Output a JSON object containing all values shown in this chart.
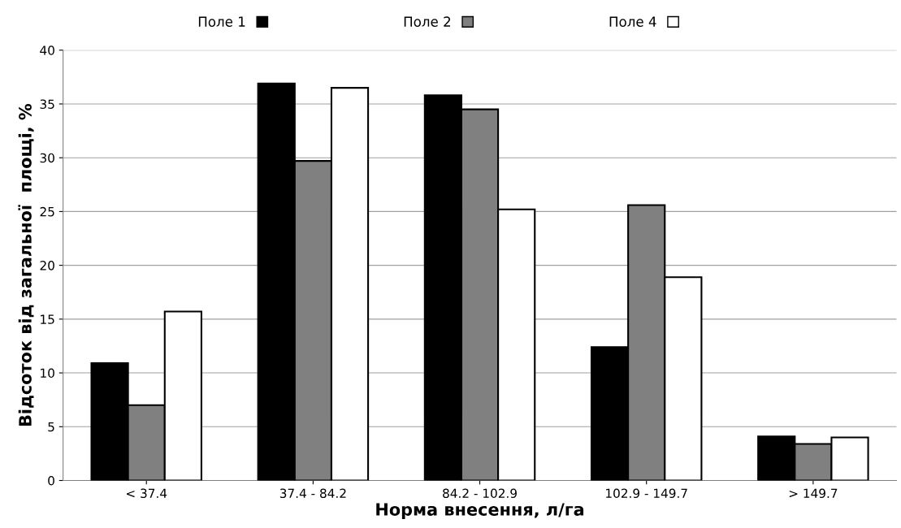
{
  "chart_data": {
    "type": "bar",
    "xlabel": "Норма внесення, л/га",
    "ylabel": "Відсоток від загальної  площі, %",
    "categories": [
      "< 37.4",
      "37.4 - 84.2",
      "84.2 - 102.9",
      "102.9 - 149.7",
      "> 149.7"
    ],
    "series": [
      {
        "name": "Поле 1",
        "color": "#000000",
        "values": [
          10.9,
          36.9,
          35.8,
          12.4,
          4.1
        ]
      },
      {
        "name": "Поле 2",
        "color": "#808080",
        "values": [
          7.0,
          29.7,
          34.5,
          25.6,
          3.4
        ]
      },
      {
        "name": "Поле 4",
        "color": "#ffffff",
        "values": [
          15.7,
          36.5,
          25.2,
          18.9,
          4.0
        ]
      }
    ],
    "ylim": [
      0,
      40
    ],
    "yticks": [
      0,
      5,
      10,
      15,
      20,
      25,
      30,
      35,
      40
    ],
    "grid": "y",
    "legend": "top"
  }
}
